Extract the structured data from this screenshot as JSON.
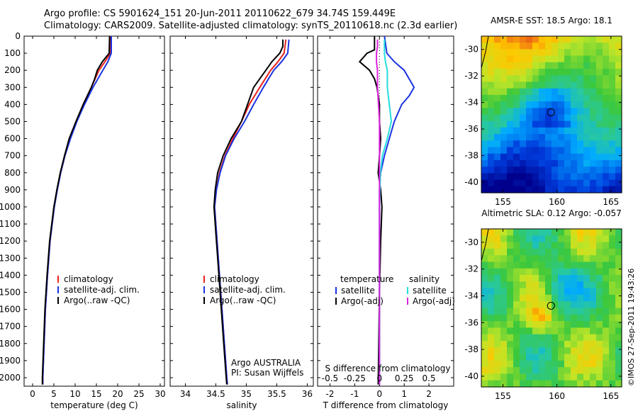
{
  "header": {
    "line1": "Argo profile: CS 5901624_151 20-Jun-2011 20110622_679 34.74S 159.449E",
    "line2": "Climatology: CARS2009. Satellite-adjusted climatology: synTS_20110618.nc (2.3d earlier)"
  },
  "credit": "©IMOS 27-Sep-2011 19:43:26",
  "colors": {
    "climatology": "#e8201a",
    "satellite": "#1a33e0",
    "argo": "#000000",
    "sal_sat": "#22dddd",
    "sal_argo": "#dd22dd"
  },
  "chart_data": [
    {
      "type": "line",
      "panel": "temperature",
      "xlabel": "temperature (deg C)",
      "ylabel": "",
      "xlim": [
        -2,
        31
      ],
      "ylim": [
        2050,
        0
      ],
      "xticks": [
        "0",
        "5",
        "10",
        "15",
        "20",
        "25",
        "30"
      ],
      "yticks": [
        "0",
        "100",
        "200",
        "300",
        "400",
        "500",
        "600",
        "700",
        "800",
        "900",
        "1000",
        "1100",
        "1200",
        "1300",
        "1400",
        "1500",
        "1600",
        "1700",
        "1800",
        "1900",
        "2000"
      ],
      "legend": [
        "climatology",
        "satellite-adj. clim.",
        "Argo(..raw -QC)"
      ],
      "series": [
        {
          "name": "climatology",
          "depth": [
            0,
            100,
            150,
            200,
            300,
            400,
            500,
            600,
            700,
            800,
            900,
            1000,
            1200,
            1400,
            1600,
            1800,
            2000,
            2040
          ],
          "values": [
            18.3,
            18.3,
            17.0,
            15.6,
            13.8,
            11.9,
            10.2,
            8.8,
            7.6,
            6.6,
            5.8,
            5.1,
            4.1,
            3.5,
            3.0,
            2.7,
            2.4,
            2.4
          ]
        },
        {
          "name": "satellite-adj. clim.",
          "depth": [
            0,
            100,
            150,
            200,
            300,
            400,
            500,
            600,
            700,
            800,
            900,
            1000,
            1200,
            1400,
            1600,
            1800,
            2000,
            2040
          ],
          "values": [
            18.5,
            18.5,
            17.7,
            16.5,
            14.2,
            12.2,
            10.4,
            8.9,
            7.6,
            6.6,
            5.8,
            5.1,
            4.1,
            3.5,
            3.0,
            2.7,
            2.4,
            2.4
          ]
        },
        {
          "name": "Argo(..raw -QC)",
          "depth": [
            0,
            100,
            150,
            200,
            250,
            300,
            400,
            500,
            600,
            700,
            800,
            900,
            1000,
            1200,
            1400,
            1600,
            1800,
            2000,
            2040
          ],
          "values": [
            18.1,
            18.0,
            16.4,
            15.2,
            14.6,
            13.8,
            11.9,
            10.2,
            8.6,
            7.5,
            6.5,
            5.7,
            5.0,
            4.0,
            3.4,
            2.9,
            2.6,
            2.3,
            2.3
          ]
        }
      ]
    },
    {
      "type": "line",
      "panel": "salinity",
      "xlabel": "salinity",
      "xlim": [
        33.75,
        36.1
      ],
      "ylim": [
        2050,
        0
      ],
      "xticks": [
        "34",
        "34.5",
        "35",
        "35.5",
        "36"
      ],
      "legend": [
        "climatology",
        "satellite-adj. clim.",
        "Argo(..raw -QC)"
      ],
      "annotation": [
        "Argo AUSTRALIA",
        "PI: Susan Wijffels"
      ],
      "series": [
        {
          "name": "climatology",
          "depth": [
            20,
            100,
            150,
            200,
            300,
            400,
            500,
            600,
            700,
            800,
            900,
            1000,
            1200,
            1400,
            1600,
            1800,
            2000,
            2040
          ],
          "values": [
            35.65,
            35.62,
            35.52,
            35.4,
            35.22,
            35.05,
            34.92,
            34.78,
            34.65,
            34.56,
            34.51,
            34.48,
            34.52,
            34.56,
            34.6,
            34.64,
            34.68,
            34.69
          ]
        },
        {
          "name": "satellite-adj. clim.",
          "depth": [
            20,
            100,
            150,
            200,
            300,
            400,
            500,
            600,
            700,
            800,
            900,
            1000,
            1200,
            1400,
            1600,
            1800,
            2000,
            2040
          ],
          "values": [
            35.7,
            35.68,
            35.58,
            35.45,
            35.28,
            35.12,
            34.97,
            34.8,
            34.66,
            34.57,
            34.51,
            34.48,
            34.52,
            34.56,
            34.6,
            34.64,
            34.68,
            34.69
          ]
        },
        {
          "name": "Argo(..raw -QC)",
          "depth": [
            20,
            60,
            100,
            150,
            200,
            250,
            300,
            400,
            500,
            600,
            700,
            800,
            900,
            1000,
            1200,
            1400,
            1600,
            1800,
            2000,
            2040
          ],
          "values": [
            35.6,
            35.6,
            35.55,
            35.42,
            35.32,
            35.22,
            35.12,
            35.02,
            34.92,
            34.75,
            34.62,
            34.53,
            34.49,
            34.47,
            34.51,
            34.55,
            34.59,
            34.63,
            34.67,
            34.68
          ]
        }
      ]
    },
    {
      "type": "line",
      "panel": "difference",
      "xlabel": "T difference from climatology",
      "xlabel_top": "S difference from climatology",
      "xlim": [
        -2.5,
        3
      ],
      "ylim": [
        2050,
        0
      ],
      "xticks": [
        "-2",
        "-1",
        "0",
        "1",
        "2"
      ],
      "xticks_s": [
        "-0.5",
        "-0.25",
        "0",
        "0.25",
        "0.5"
      ],
      "legend_t": {
        "title": "temperature",
        "items": [
          "satellite",
          "Argo(-adj)"
        ]
      },
      "legend_s": {
        "title": "salinity",
        "items": [
          "satellite",
          "Argo(-adj)"
        ]
      },
      "series": [
        {
          "name": "temperature satellite",
          "depth": [
            0,
            100,
            150,
            200,
            300,
            350,
            400,
            500,
            600,
            700,
            800,
            900,
            1000,
            1200,
            1500,
            2040
          ],
          "values": [
            0.2,
            0.3,
            0.6,
            1.0,
            1.4,
            1.2,
            0.9,
            0.6,
            0.4,
            0.2,
            0.05,
            0,
            0,
            0,
            0,
            0
          ]
        },
        {
          "name": "temperature Argo(-adj)",
          "depth": [
            0,
            80,
            100,
            150,
            200,
            250,
            300,
            400,
            500,
            600,
            700,
            800,
            900,
            1000,
            1200,
            1500,
            2040
          ],
          "values": [
            -0.2,
            -0.2,
            -0.5,
            -0.8,
            -0.4,
            -0.2,
            -0.1,
            0,
            0,
            0.05,
            0,
            -0.05,
            0.05,
            0.1,
            0.05,
            0,
            -0.05
          ]
        },
        {
          "name": "salinity satellite",
          "depth": [
            20,
            100,
            150,
            200,
            300,
            400,
            500,
            600,
            700,
            800,
            1000,
            1500,
            2040
          ],
          "values": [
            0.05,
            0.05,
            0.06,
            0.08,
            0.08,
            0.1,
            0.12,
            0.08,
            0.03,
            0.01,
            0,
            0,
            0
          ]
        },
        {
          "name": "salinity Argo(-adj)",
          "depth": [
            20,
            60,
            100,
            150,
            200,
            300,
            400,
            500,
            600,
            700,
            800,
            1000,
            1500,
            2040
          ],
          "values": [
            -0.02,
            -0.02,
            -0.03,
            -0.03,
            -0.02,
            -0.02,
            -0.01,
            0,
            0,
            0,
            0,
            0,
            0,
            0
          ]
        }
      ]
    },
    {
      "type": "heatmap",
      "panel": "AMSR-E SST",
      "title": "AMSR-E SST: 18.5 Argo: 18.1",
      "xlim": [
        153,
        166
      ],
      "ylim": [
        -40.8,
        -29
      ],
      "xticks": [
        "155",
        "160",
        "165"
      ],
      "yticks": [
        "-30",
        "-32",
        "-34",
        "-36",
        "-38",
        "-40"
      ],
      "marker": {
        "lon": 159.449,
        "lat": -34.74
      }
    },
    {
      "type": "heatmap",
      "panel": "Altimetric SLA",
      "title": "Altimetric SLA: 0.12 Argo: -0.057",
      "xlim": [
        153,
        166
      ],
      "ylim": [
        -40.8,
        -29
      ],
      "xticks": [
        "155",
        "160",
        "165"
      ],
      "yticks": [
        "-30",
        "-32",
        "-34",
        "-36",
        "-38",
        "-40"
      ],
      "marker": {
        "lon": 159.449,
        "lat": -34.74
      }
    }
  ]
}
